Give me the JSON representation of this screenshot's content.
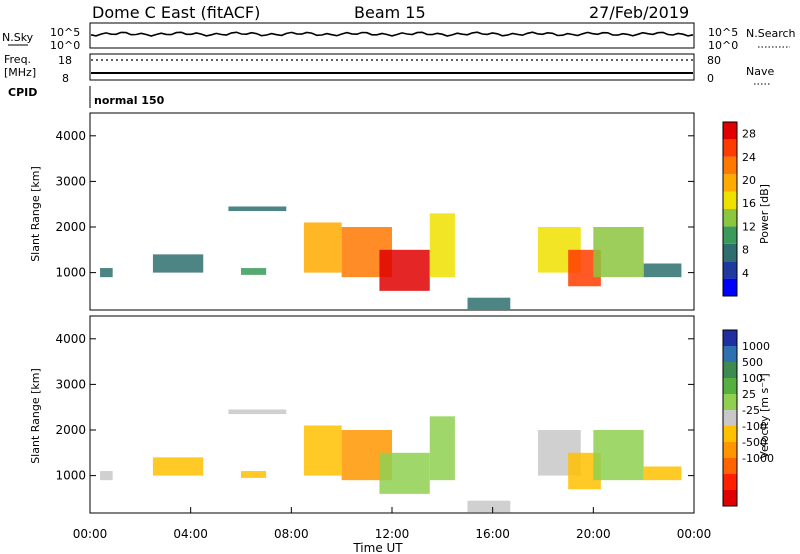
{
  "header": {
    "title": "Dome C East (fitACF)",
    "beam": "Beam 15",
    "date": "27/Feb/2019"
  },
  "top_panel": {
    "nsky_label": "N.Sky",
    "nsky_ticks": [
      "10^5",
      "10^0"
    ],
    "nsearch_label": "N.Search",
    "right_ticks": [
      "10^5",
      "10^0"
    ],
    "freq_label_1": "Freq.",
    "freq_label_2": "[MHz]",
    "freq_ticks": [
      "18",
      "8"
    ],
    "nave_label": "Nave",
    "nave_ticks": [
      "80",
      "0"
    ],
    "cpid_label": "CPID",
    "cpid_value": "normal 150"
  },
  "axes": {
    "x_ticks": [
      "00:00",
      "04:00",
      "08:00",
      "12:00",
      "16:00",
      "20:00",
      "00:00"
    ],
    "xlabel": "Time UT",
    "ylabel": "Slant Range [km]",
    "y_ticks": [
      "1000",
      "2000",
      "3000",
      "4000"
    ]
  },
  "colorbars": {
    "power": {
      "label": "Power [dB]",
      "ticks": [
        "4",
        "8",
        "12",
        "16",
        "20",
        "24",
        "28"
      ],
      "colors": [
        "#0000ff",
        "#1f3a9e",
        "#2e6e6e",
        "#3a9a5a",
        "#8cc63f",
        "#f0e000",
        "#ffaa00",
        "#ff7800",
        "#ff3c00",
        "#e00000"
      ]
    },
    "velocity": {
      "label": "Velocity [m s⁻¹]",
      "ticks": [
        "1000",
        "500",
        "100",
        "25",
        "-25",
        "-100",
        "-500",
        "-1000"
      ],
      "colors": [
        "#2030a0",
        "#2f70b0",
        "#3e8a50",
        "#55b040",
        "#8fd050",
        "#c8c8c8",
        "#ffc000",
        "#ff9600",
        "#ff6400",
        "#ff2000",
        "#e00000"
      ]
    }
  },
  "chart_data": [
    {
      "type": "heatmap",
      "panel": "power",
      "xlabel": "Time UT",
      "ylabel": "Slant Range [km]",
      "xlim": [
        0,
        24
      ],
      "ylim": [
        180,
        4500
      ],
      "clim": [
        0,
        30
      ],
      "colorbar_label": "Power [dB]",
      "regions": [
        {
          "t0": 0.4,
          "t1": 0.9,
          "r0": 900,
          "r1": 1100,
          "val": 8
        },
        {
          "t0": 2.5,
          "t1": 4.5,
          "r0": 1000,
          "r1": 1400,
          "val": 7
        },
        {
          "t0": 5.5,
          "t1": 7.8,
          "r0": 2350,
          "r1": 2450,
          "val": 6
        },
        {
          "t0": 6.0,
          "t1": 7.0,
          "r0": 950,
          "r1": 1100,
          "val": 10
        },
        {
          "t0": 8.5,
          "t1": 10.0,
          "r0": 1000,
          "r1": 2100,
          "val": 18
        },
        {
          "t0": 10.0,
          "t1": 12.0,
          "r0": 900,
          "r1": 2000,
          "val": 22
        },
        {
          "t0": 11.5,
          "t1": 13.5,
          "r0": 600,
          "r1": 1500,
          "val": 28
        },
        {
          "t0": 13.5,
          "t1": 14.5,
          "r0": 900,
          "r1": 2300,
          "val": 16
        },
        {
          "t0": 15.0,
          "t1": 16.7,
          "r0": 200,
          "r1": 450,
          "val": 8
        },
        {
          "t0": 17.8,
          "t1": 19.5,
          "r0": 1000,
          "r1": 2000,
          "val": 16
        },
        {
          "t0": 19.0,
          "t1": 20.3,
          "r0": 700,
          "r1": 1500,
          "val": 24
        },
        {
          "t0": 20.0,
          "t1": 22.0,
          "r0": 900,
          "r1": 2000,
          "val": 12
        },
        {
          "t0": 22.0,
          "t1": 23.5,
          "r0": 900,
          "r1": 1200,
          "val": 8
        }
      ]
    },
    {
      "type": "heatmap",
      "panel": "velocity",
      "xlabel": "Time UT",
      "ylabel": "Slant Range [km]",
      "xlim": [
        0,
        24
      ],
      "ylim": [
        180,
        4500
      ],
      "clim": [
        -1000,
        1000
      ],
      "colorbar_label": "Velocity [m s⁻¹]",
      "regions": [
        {
          "t0": 0.4,
          "t1": 0.9,
          "r0": 900,
          "r1": 1100,
          "val": 80
        },
        {
          "t0": 2.5,
          "t1": 4.5,
          "r0": 1000,
          "r1": 1400,
          "val": -100
        },
        {
          "t0": 5.5,
          "t1": 7.8,
          "r0": 2350,
          "r1": 2450,
          "val": 0
        },
        {
          "t0": 6.0,
          "t1": 7.0,
          "r0": 950,
          "r1": 1100,
          "val": -150
        },
        {
          "t0": 8.5,
          "t1": 10.0,
          "r0": 1000,
          "r1": 2100,
          "val": -200
        },
        {
          "t0": 10.0,
          "t1": 12.0,
          "r0": 900,
          "r1": 2000,
          "val": -300
        },
        {
          "t0": 11.5,
          "t1": 13.5,
          "r0": 600,
          "r1": 1500,
          "val": 150
        },
        {
          "t0": 13.5,
          "t1": 14.5,
          "r0": 900,
          "r1": 2300,
          "val": 100
        },
        {
          "t0": 15.0,
          "t1": 16.7,
          "r0": 200,
          "r1": 450,
          "val": 0
        },
        {
          "t0": 17.8,
          "t1": 19.5,
          "r0": 1000,
          "r1": 2000,
          "val": 80
        },
        {
          "t0": 19.0,
          "t1": 20.3,
          "r0": 700,
          "r1": 1500,
          "val": -150
        },
        {
          "t0": 20.0,
          "t1": 22.0,
          "r0": 900,
          "r1": 2000,
          "val": 120
        },
        {
          "t0": 22.0,
          "t1": 23.5,
          "r0": 900,
          "r1": 1200,
          "val": -120
        }
      ]
    }
  ]
}
